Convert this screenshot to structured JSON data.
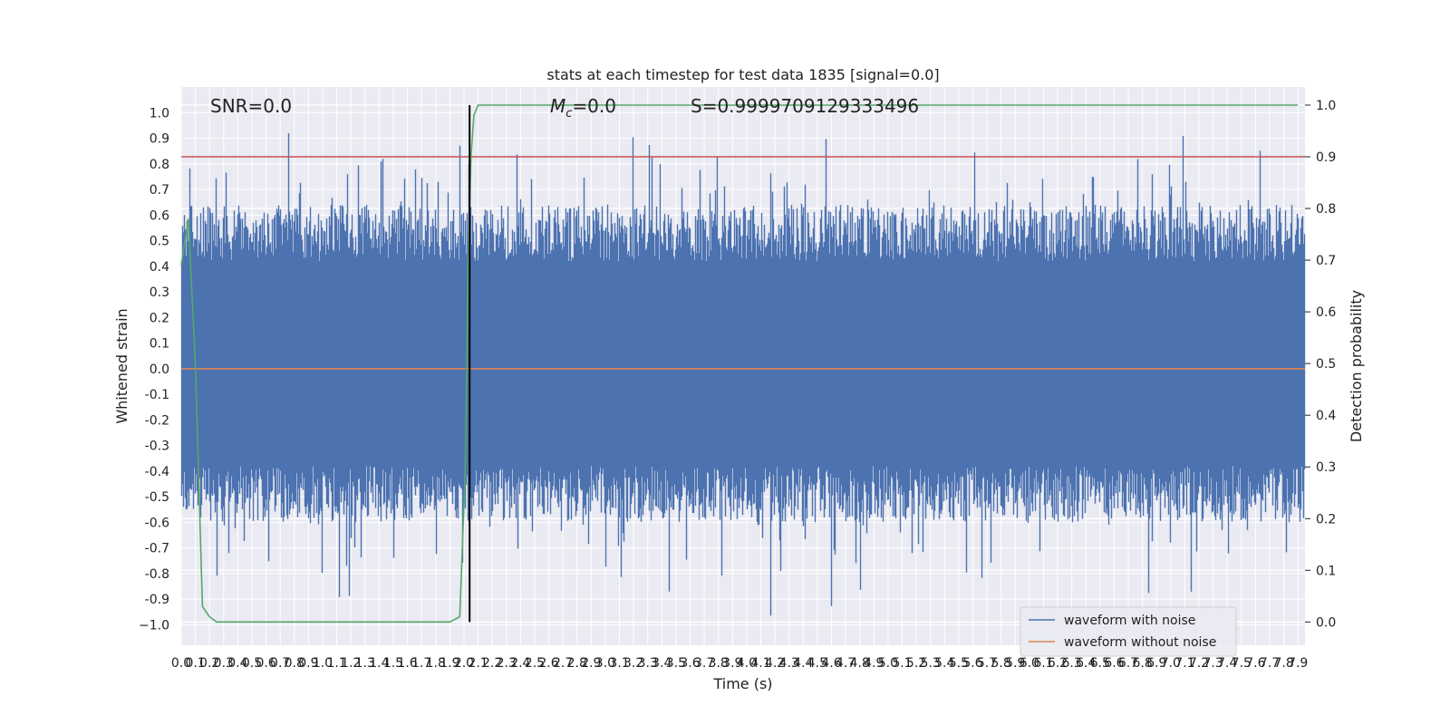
{
  "chart_data": {
    "type": "line",
    "title": "stats at each timestep for test data 1835 [signal=0.0]",
    "xlabel": "Time (s)",
    "ylabel": "Whitened strain",
    "y2label": "Detection probability",
    "xlim": [
      0.0,
      7.95
    ],
    "ylim": [
      -1.08,
      1.1
    ],
    "y2lim": [
      -0.045,
      1.035
    ],
    "grid": true,
    "x_ticks": [
      "0.0",
      "0.1",
      "0.2",
      "0.3",
      "0.4",
      "0.5",
      "0.6",
      "0.7",
      "0.8",
      "0.9",
      "1.0",
      "1.1",
      "1.2",
      "1.3",
      "1.4",
      "1.5",
      "1.6",
      "1.7",
      "1.8",
      "1.9",
      "2.0",
      "2.1",
      "2.2",
      "2.3",
      "2.4",
      "2.5",
      "2.6",
      "2.7",
      "2.8",
      "2.9",
      "3.0",
      "3.1",
      "3.2",
      "3.3",
      "3.4",
      "3.5",
      "3.6",
      "3.7",
      "3.8",
      "3.9",
      "4.0",
      "4.1",
      "4.2",
      "4.3",
      "4.4",
      "4.5",
      "4.6",
      "4.7",
      "4.8",
      "4.9",
      "5.0",
      "5.1",
      "5.2",
      "5.3",
      "5.4",
      "5.5",
      "5.6",
      "5.7",
      "5.8",
      "5.9",
      "6.0",
      "6.1",
      "6.2",
      "6.3",
      "6.4",
      "6.5",
      "6.6",
      "6.7",
      "6.8",
      "6.9",
      "7.0",
      "7.1",
      "7.2",
      "7.3",
      "7.4",
      "7.5",
      "7.6",
      "7.7",
      "7.8",
      "7.9"
    ],
    "y_ticks": [
      "1.0",
      "0.9",
      "0.8",
      "0.7",
      "0.6",
      "0.5",
      "0.4",
      "0.3",
      "0.2",
      "0.1",
      "0.0",
      "-0.1",
      "-0.2",
      "-0.3",
      "-0.4",
      "-0.5",
      "-0.6",
      "-0.7",
      "-0.8",
      "-0.9",
      "−1.0"
    ],
    "y2_ticks": [
      "1.0",
      "0.9",
      "0.8",
      "0.7",
      "0.6",
      "0.5",
      "0.4",
      "0.3",
      "0.2",
      "0.1",
      "0.0"
    ],
    "annotations": {
      "snr": "SNR=0.0",
      "mc": "=0.0",
      "mc_symbol": "M",
      "mc_sub": "c",
      "s": "S=0.9999709129333496"
    },
    "legend": {
      "placement": "lower-right",
      "entries": [
        "waveform with noise",
        "waveform without noise"
      ]
    },
    "threshold_line": {
      "axis": "y2",
      "value": 0.9
    },
    "vertical_marker": {
      "x": 2.04
    },
    "series": [
      {
        "name": "waveform with noise",
        "axis": "y",
        "kind": "noise",
        "approx_range": [
          -0.98,
          1.0
        ]
      },
      {
        "name": "waveform without noise",
        "axis": "y",
        "kind": "flat",
        "value": 0.0
      },
      {
        "axis": "y2",
        "kind": "line",
        "x": [
          0.0,
          0.05,
          0.1,
          0.15,
          0.2,
          0.25,
          0.5,
          1.0,
          1.5,
          1.8,
          1.9,
          1.97,
          2.01,
          2.03,
          2.05,
          2.07,
          2.1,
          2.15,
          2.5,
          3.0,
          4.0,
          5.0,
          6.0,
          7.0,
          7.9
        ],
        "y": [
          0.69,
          0.78,
          0.5,
          0.03,
          0.01,
          0.0,
          0.0,
          0.0,
          0.0,
          0.0,
          0.0,
          0.01,
          0.3,
          0.7,
          0.9,
          0.98,
          1.0,
          1.0,
          1.0,
          1.0,
          1.0,
          1.0,
          1.0,
          1.0,
          1.0
        ]
      }
    ],
    "colors": {
      "background": "#eaeaf2",
      "grid": "#ffffff",
      "noise": "#4c72b0",
      "clean": "#dd8452",
      "probability": "#55a868",
      "threshold": "#c44e52",
      "marker": "#000000"
    }
  }
}
